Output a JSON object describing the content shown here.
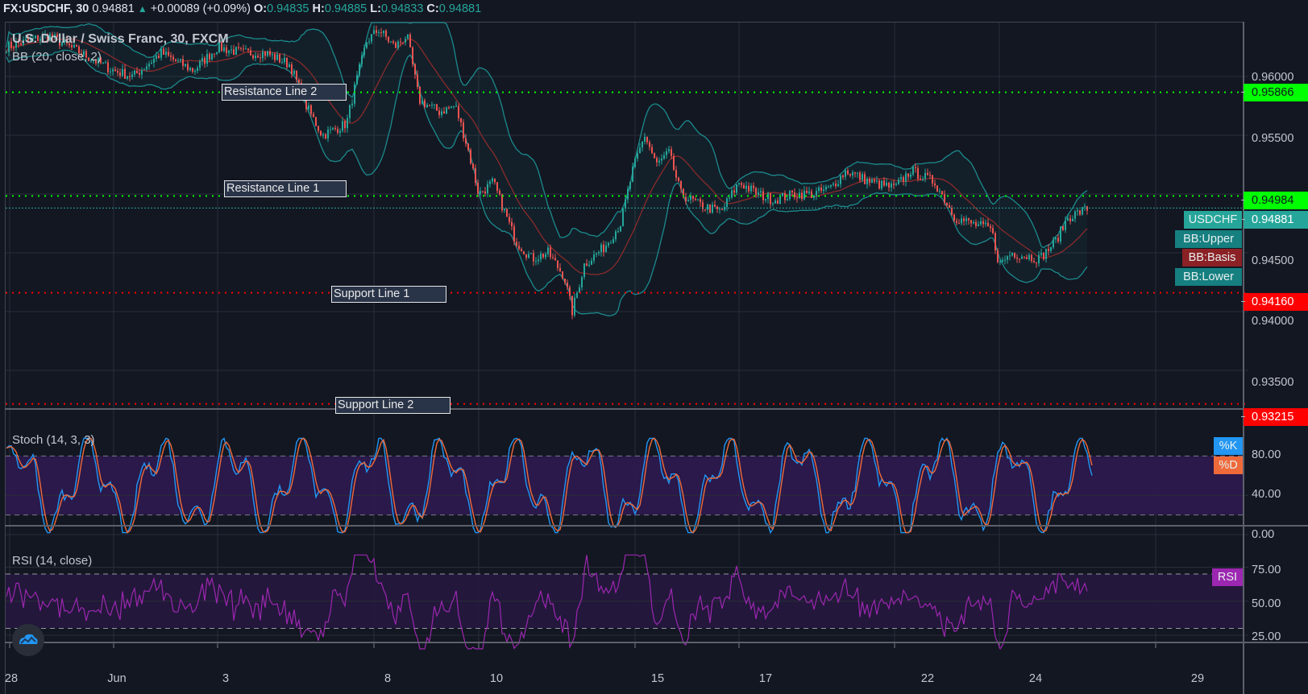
{
  "header": {
    "symbol": "FX:USDCHF, 30",
    "last": "0.94881",
    "change_icon": "triangle-up-icon",
    "change": "+0.00089 (+0.09%)",
    "ohlc": [
      {
        "key": "O:",
        "value": "0.94835"
      },
      {
        "key": "H:",
        "value": "0.94885"
      },
      {
        "key": "L:",
        "value": "0.94833"
      },
      {
        "key": "C:",
        "value": "0.94881"
      }
    ]
  },
  "main_pane": {
    "title": "U.S. Dollar / Swiss Franc, 30, FXCM",
    "indicator": "BB (20, close, 2)",
    "annotations": [
      {
        "label": "Resistance Line 2",
        "price": "0.95866",
        "color": "#00ff00"
      },
      {
        "label": "Resistance Line 1",
        "price": "0.94984",
        "color": "#00ff00"
      },
      {
        "label": "Support Line 1",
        "price": "0.94160",
        "color": "#ff0000"
      },
      {
        "label": "Support Line 2",
        "price": "0.93215",
        "color": "#ff0000"
      }
    ],
    "price_axis": [
      "0.96000",
      "0.95500",
      "0.94500",
      "0.94000",
      "0.93500"
    ],
    "current_price": "0.94881",
    "series_tags": [
      {
        "label": "USDCHF",
        "color": "#26a69a"
      },
      {
        "label": "BB:Upper",
        "color": "#167f80"
      },
      {
        "label": "BB:Basis",
        "color": "#8b2125"
      },
      {
        "label": "BB:Lower",
        "color": "#167f80"
      }
    ]
  },
  "stoch_pane": {
    "title": "Stoch (14, 3, 3)",
    "axis": [
      "80.00",
      "40.00",
      "0.00"
    ],
    "tags": [
      {
        "label": "%K",
        "color": "#2196f3"
      },
      {
        "label": "%D",
        "color": "#ef6a3a"
      }
    ]
  },
  "rsi_pane": {
    "title": "RSI (14, close)",
    "axis": [
      "75.00",
      "50.00",
      "25.00"
    ],
    "tag": {
      "label": "RSI",
      "color": "#9c27b0"
    }
  },
  "time_axis": [
    "28",
    "Jun",
    "3",
    "8",
    "10",
    "15",
    "17",
    "22",
    "24",
    "29"
  ],
  "colors": {
    "background": "#131722",
    "grid": "#2a2e39",
    "up": "#26a69a",
    "down": "#ef5350",
    "resistance": "#00ff00",
    "support": "#ff0000",
    "bb_band": "#1b8a8c",
    "bb_basis": "#8b2a2a",
    "stoch_k": "#2196f3",
    "stoch_d": "#ef6a3a",
    "rsi": "#9c27b0"
  },
  "chart_data": {
    "type": "candlestick",
    "title": "U.S. Dollar / Swiss Franc, 30, FXCM",
    "x_ticks": [
      "28",
      "Jun",
      "3",
      "8",
      "10",
      "15",
      "17",
      "22",
      "24",
      "29"
    ],
    "y_ticks": [
      0.935,
      0.94,
      0.945,
      0.95,
      0.955,
      0.96
    ],
    "ylim": [
      0.9305,
      0.9645
    ],
    "horizontal_lines": [
      {
        "name": "Resistance Line 2",
        "value": 0.95866
      },
      {
        "name": "Resistance Line 1",
        "value": 0.94984
      },
      {
        "name": "Support Line 1",
        "value": 0.9416
      },
      {
        "name": "Support Line 2",
        "value": 0.93215
      }
    ],
    "approx_close_path": {
      "x": [
        "28",
        "Jun",
        "3",
        "8",
        "10",
        "15",
        "17",
        "22",
        "24",
        "latest"
      ],
      "values": [
        0.963,
        0.959,
        0.961,
        0.963,
        0.949,
        0.9545,
        0.949,
        0.952,
        0.944,
        0.94881
      ]
    },
    "stoch_ylim": [
      0,
      100
    ],
    "stoch_bands": [
      20,
      80
    ],
    "rsi_ylim": [
      10,
      90
    ],
    "rsi_bands": [
      30,
      70
    ],
    "rsi_last": 68
  }
}
